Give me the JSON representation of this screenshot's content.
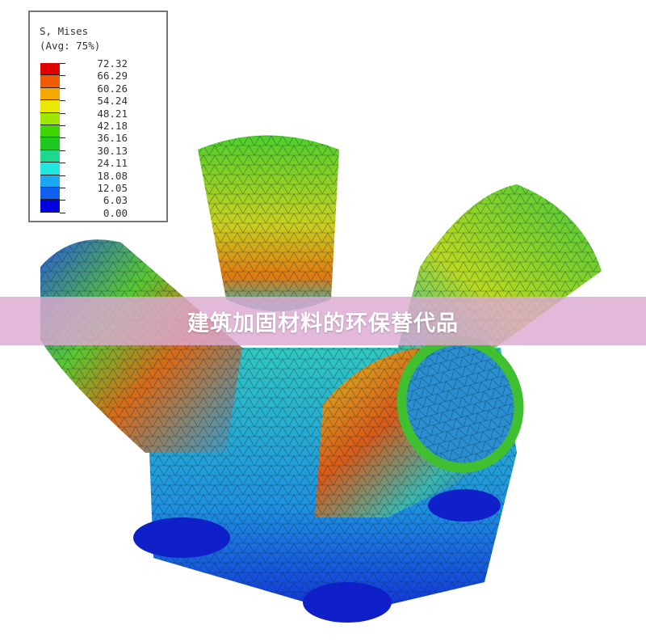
{
  "legend": {
    "title_line1": "S, Mises",
    "title_line2": "(Avg: 75%)",
    "ticks": [
      "72.32",
      "66.29",
      "60.26",
      "54.24",
      "48.21",
      "42.18",
      "36.16",
      "30.13",
      "24.11",
      "18.08",
      "12.05",
      "6.03",
      "0.00"
    ],
    "band_colors": [
      "#e00000",
      "#f05a00",
      "#f7a800",
      "#e8e800",
      "#9ee600",
      "#3fd600",
      "#1ec81e",
      "#1fd890",
      "#20e8e0",
      "#1aa8f0",
      "#1060f0",
      "#0000e0"
    ]
  },
  "banner": {
    "title": "建筑加固材料的环保替代品",
    "background": "#ddaad2"
  }
}
